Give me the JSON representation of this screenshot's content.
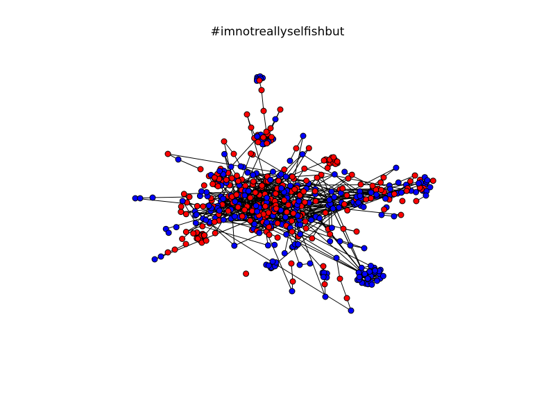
{
  "figure": {
    "title": "#imnotreallyselfishbut"
  },
  "graph": {
    "node_colors": {
      "red": "#ff0000",
      "blue": "#0000ff"
    },
    "node_outline_color": "#000000",
    "edge_color": "#000000",
    "background_color": "#ffffff"
  }
}
